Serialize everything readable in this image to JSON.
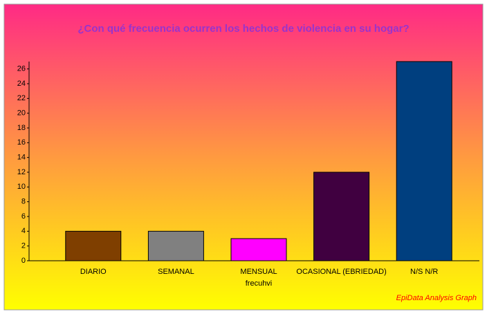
{
  "chart_data": {
    "type": "bar",
    "title": "¿Con qué frecuencia ocurren los hechos de violencia en su hogar?",
    "x_label": "frecuhvi",
    "footer": "EpiData Analysis Graph",
    "categories": [
      "DIARIO",
      "SEMANAL",
      "MENSUAL",
      "OCASIONAL (EBRIEDAD)",
      "N/S N/R"
    ],
    "values": [
      4,
      4,
      3,
      12,
      27
    ],
    "colors": [
      "#7f3f00",
      "#808080",
      "#ff00ff",
      "#400040",
      "#003f7f"
    ],
    "ylim": [
      0,
      27
    ],
    "yticks": [
      0,
      2,
      4,
      6,
      8,
      10,
      12,
      14,
      16,
      18,
      20,
      22,
      24,
      26
    ],
    "grid": false
  }
}
